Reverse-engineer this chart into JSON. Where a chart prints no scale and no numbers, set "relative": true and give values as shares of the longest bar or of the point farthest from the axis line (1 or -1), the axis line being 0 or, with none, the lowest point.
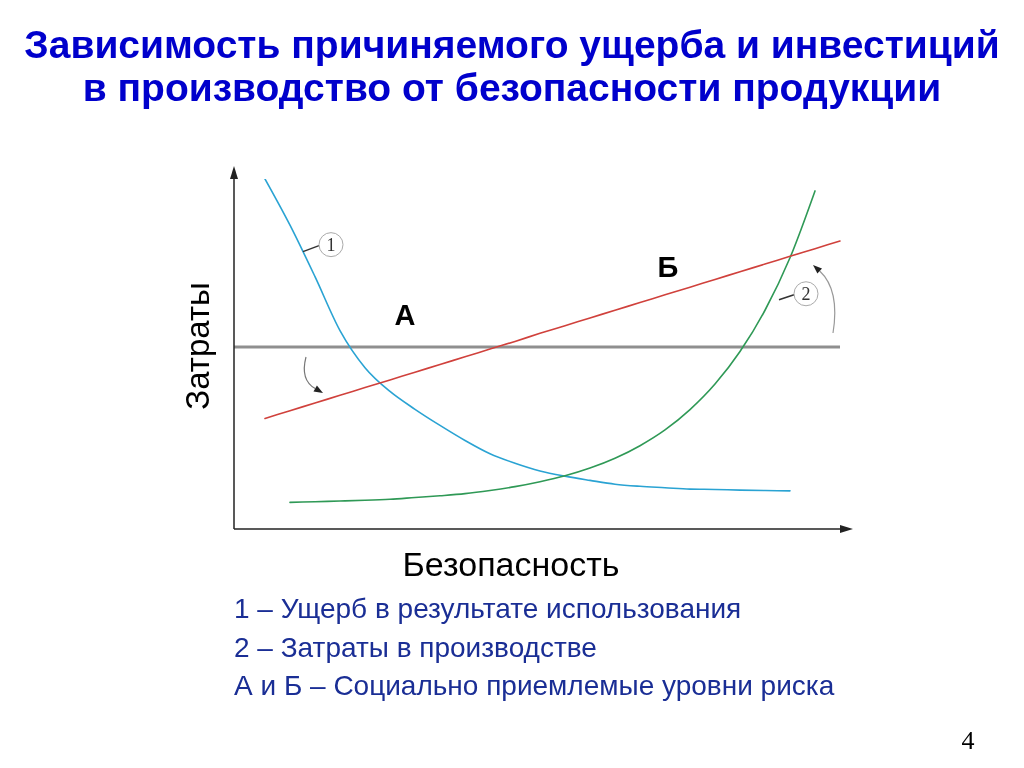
{
  "chart_data": {
    "type": "line",
    "title": "Зависимость причиняемого ущерба и инвестиций в производство от безопасности продукции",
    "xlabel": "Безопасность",
    "ylabel": "Затраты",
    "relative": true,
    "categories": [
      null,
      null,
      null,
      null,
      null,
      null,
      null,
      null,
      null,
      null,
      null,
      null,
      null,
      null,
      null,
      null,
      null,
      null,
      null,
      null,
      null,
      null,
      null,
      null,
      null
    ],
    "series": [
      {
        "name": "1",
        "color": "#2aa3d3",
        "values": [
          null,
          1,
          0.868,
          0.721,
          0.567,
          0.461,
          0.393,
          0.342,
          0.296,
          0.253,
          0.215,
          0.188,
          0.166,
          0.151,
          0.139,
          0.128,
          0.122,
          0.118,
          0.114,
          0.113,
          0.111,
          0.11,
          0.109,
          null,
          null
        ]
      },
      {
        "name": "2",
        "color": "#2f9956",
        "values": [
          null,
          null,
          0.076,
          0.078,
          0.08,
          0.082,
          0.085,
          0.09,
          0.095,
          0.101,
          0.11,
          0.121,
          0.135,
          0.152,
          0.174,
          0.202,
          0.238,
          0.283,
          0.341,
          0.414,
          0.507,
          0.625,
          0.775,
          0.966,
          null
        ]
      },
      {
        "name": "Б",
        "color": "#d0413c",
        "values": [
          null,
          0.316,
          0.338,
          0.36,
          0.382,
          0.404,
          0.426,
          0.448,
          0.47,
          0.492,
          0.514,
          0.536,
          0.559,
          0.581,
          0.603,
          0.625,
          0.647,
          0.669,
          0.691,
          0.713,
          0.735,
          0.757,
          0.779,
          0.801,
          0.823
        ]
      }
    ],
    "ref_lines": [
      {
        "axis": "y",
        "value": 0.52,
        "label": "А",
        "color": "#8f8f8f"
      }
    ],
    "annotations": [
      "1 – Ущерб в результате использования",
      "2 – Затраты в производстве",
      "А и Б – Социально приемлемые уровни риска",
      "4"
    ]
  }
}
